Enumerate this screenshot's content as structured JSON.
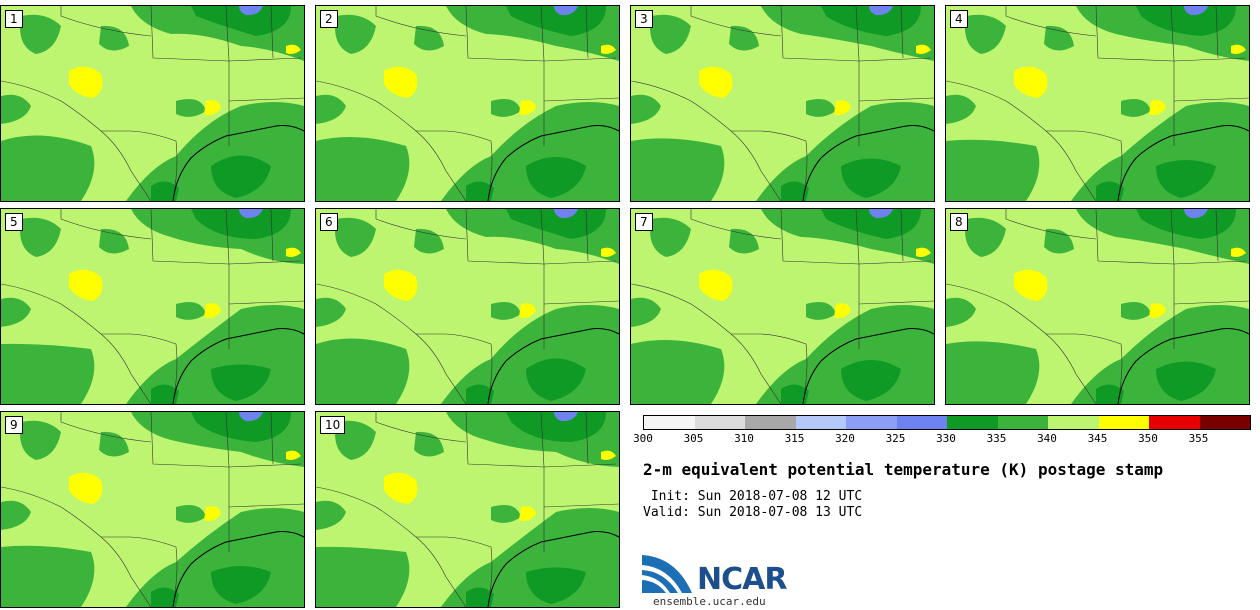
{
  "panels": [
    {
      "label": "1"
    },
    {
      "label": "2"
    },
    {
      "label": "3"
    },
    {
      "label": "4"
    },
    {
      "label": "5"
    },
    {
      "label": "6"
    },
    {
      "label": "7"
    },
    {
      "label": "8"
    },
    {
      "label": "9"
    },
    {
      "label": "10"
    }
  ],
  "colorbar": {
    "ticks": [
      "300",
      "305",
      "310",
      "315",
      "320",
      "325",
      "330",
      "335",
      "340",
      "345",
      "350",
      "355"
    ],
    "colors": [
      "#f5f5f5",
      "#dcdcdc",
      "#a8a8a8",
      "#b4c8fa",
      "#8c9ef5",
      "#6e82f0",
      "#0f9a26",
      "#3cb43c",
      "#bef570",
      "#ffff00",
      "#e60000",
      "#7a0000"
    ]
  },
  "map_colors": {
    "light_green": "#bef570",
    "mid_green": "#3cb43c",
    "dark_green": "#0f9a26",
    "yellow": "#ffff00",
    "blue": "#6e82f0"
  },
  "title": "2-m equivalent potential temperature (K) postage stamp",
  "init": " Init: Sun 2018-07-08 12 UTC",
  "valid": "Valid: Sun 2018-07-08 13 UTC",
  "logo": {
    "name": "NCAR",
    "url": "ensemble.ucar.edu"
  }
}
